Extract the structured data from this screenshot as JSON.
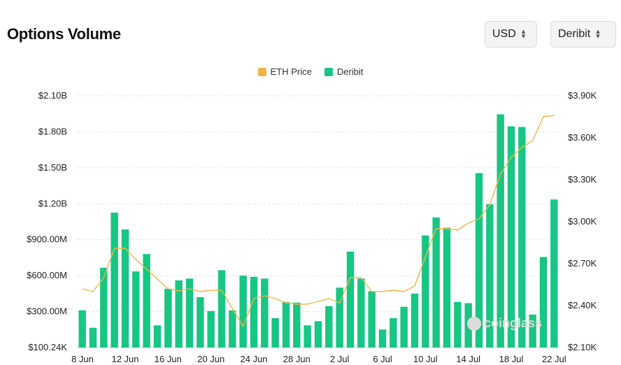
{
  "header": {
    "title": "Options Volume",
    "currency_select": "USD",
    "exchange_select": "Deribit"
  },
  "watermark": "coinglass",
  "chart_data": {
    "type": "bar",
    "legend": [
      {
        "name": "ETH Price",
        "color": "#f0b54a"
      },
      {
        "name": "Deribit",
        "color": "#17c682"
      }
    ],
    "legend_position": "top-center",
    "grid": true,
    "y_left": {
      "ticks": [
        "$2.10B",
        "$1.80B",
        "$1.50B",
        "$1.20B",
        "$900.00M",
        "$600.00M",
        "$300.00M",
        "$100.24K"
      ],
      "tick_values": [
        2100000000,
        1800000000,
        1500000000,
        1200000000,
        900000000,
        600000000,
        300000000,
        100240
      ],
      "ylim": [
        100240,
        2100000000
      ]
    },
    "y_right": {
      "ticks": [
        "$3.90K",
        "$3.60K",
        "$3.30K",
        "$3.00K",
        "$2.70K",
        "$2.40K",
        "$2.10K"
      ],
      "tick_values": [
        3900,
        3600,
        3300,
        3000,
        2700,
        2400,
        2100
      ],
      "ylim": [
        2100,
        3900
      ]
    },
    "x_tick_labels": [
      "8 Jun",
      "12 Jun",
      "16 Jun",
      "20 Jun",
      "24 Jun",
      "28 Jun",
      "2 Jul",
      "6 Jul",
      "10 Jul",
      "14 Jul",
      "18 Jul",
      "22 Jul"
    ],
    "categories": [
      "8 Jun",
      "9 Jun",
      "10 Jun",
      "11 Jun",
      "12 Jun",
      "13 Jun",
      "14 Jun",
      "15 Jun",
      "16 Jun",
      "17 Jun",
      "18 Jun",
      "19 Jun",
      "20 Jun",
      "21 Jun",
      "22 Jun",
      "23 Jun",
      "24 Jun",
      "25 Jun",
      "26 Jun",
      "27 Jun",
      "28 Jun",
      "29 Jun",
      "30 Jun",
      "1 Jul",
      "2 Jul",
      "3 Jul",
      "4 Jul",
      "5 Jul",
      "6 Jul",
      "7 Jul",
      "8 Jul",
      "9 Jul",
      "10 Jul",
      "11 Jul",
      "12 Jul",
      "13 Jul",
      "14 Jul",
      "15 Jul",
      "16 Jul",
      "17 Jul",
      "18 Jul",
      "19 Jul",
      "20 Jul",
      "21 Jul",
      "22 Jul"
    ],
    "series": [
      {
        "name": "Deribit",
        "type": "bar",
        "axis": "left",
        "values": [
          310000000,
          165000000,
          665000000,
          1125000000,
          985000000,
          635000000,
          780000000,
          185000000,
          490000000,
          560000000,
          575000000,
          420000000,
          305000000,
          645000000,
          310000000,
          600000000,
          590000000,
          575000000,
          245000000,
          380000000,
          375000000,
          185000000,
          220000000,
          345000000,
          500000000,
          800000000,
          575000000,
          470000000,
          150000000,
          245000000,
          340000000,
          450000000,
          935000000,
          1085000000,
          1000000000,
          380000000,
          370000000,
          1455000000,
          1195000000,
          1945000000,
          1845000000,
          1840000000,
          275000000,
          755000000,
          1235000000
        ]
      },
      {
        "name": "ETH Price",
        "type": "line",
        "axis": "right",
        "values": [
          2520,
          2500,
          2600,
          2810,
          2810,
          2730,
          2660,
          2590,
          2520,
          2505,
          2520,
          2500,
          2510,
          2510,
          2380,
          2250,
          2450,
          2470,
          2450,
          2420,
          2410,
          2410,
          2430,
          2450,
          2420,
          2600,
          2600,
          2500,
          2500,
          2510,
          2500,
          2540,
          2750,
          2950,
          2950,
          2940,
          2990,
          3020,
          3120,
          3340,
          3460,
          3530,
          3580,
          3750,
          3760
        ]
      }
    ]
  }
}
